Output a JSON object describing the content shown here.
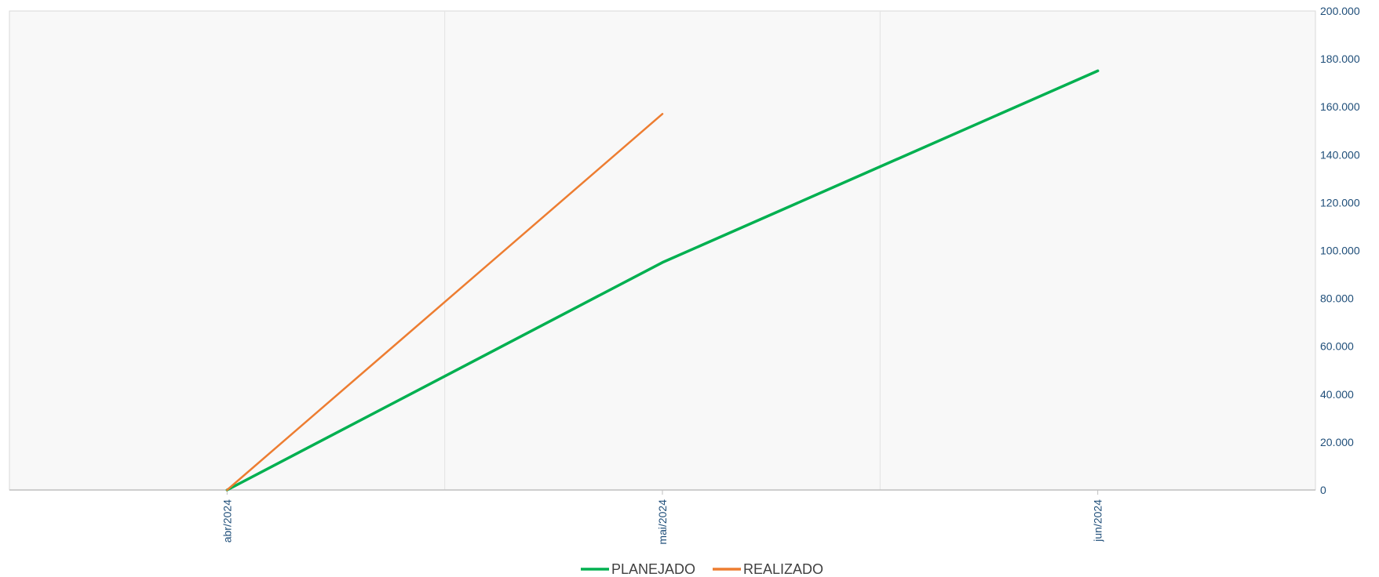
{
  "chart_data": {
    "type": "line",
    "title": "",
    "xlabel": "",
    "ylabel": "",
    "categories": [
      "abr/2024",
      "mai/2024",
      "jun/2024"
    ],
    "series": [
      {
        "name": "PLANEJADO",
        "color": "#00b050",
        "values": [
          0,
          95000,
          175000
        ]
      },
      {
        "name": "REALIZADO",
        "color": "#ed7d31",
        "values": [
          0,
          157000,
          null
        ]
      }
    ],
    "ylim": [
      0,
      200000
    ],
    "yticks": [
      0,
      20000,
      40000,
      60000,
      80000,
      100000,
      120000,
      140000,
      160000,
      180000,
      200000
    ],
    "ytick_labels": [
      "0",
      "20.000",
      "40.000",
      "60.000",
      "80.000",
      "100.000",
      "120.000",
      "140.000",
      "160.000",
      "180.000",
      "200.000"
    ],
    "y_axis_side": "right",
    "grid": "vertical",
    "legend_position": "bottom",
    "plot_background": "#f8f8f8"
  }
}
